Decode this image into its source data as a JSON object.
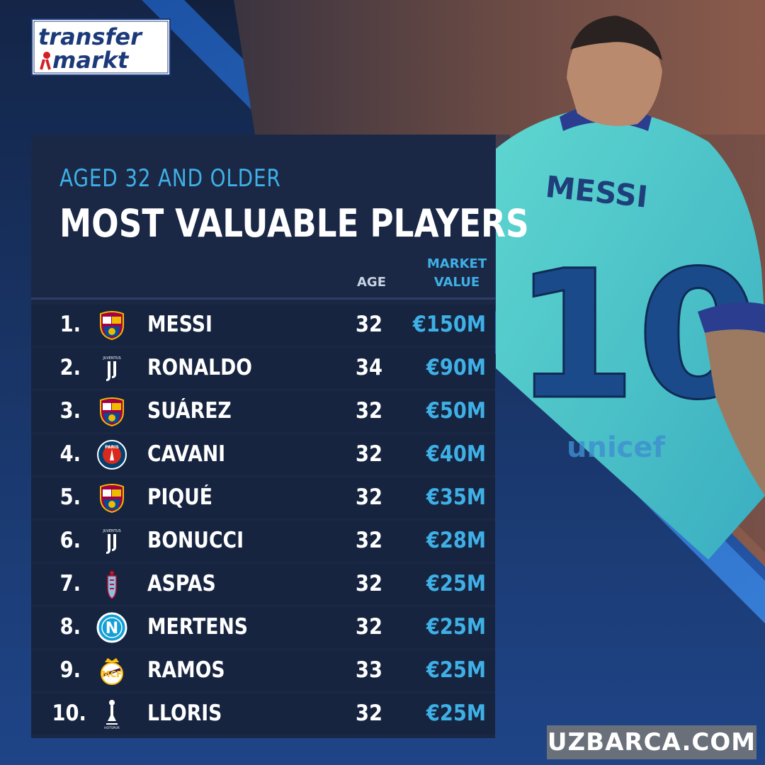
{
  "logo": {
    "line1": "transfer",
    "line2": "markt"
  },
  "header": {
    "subtitle": "AGED 32 AND OLDER",
    "title": "MOST VALUABLE PLAYERS",
    "col_age": "AGE",
    "col_market_line1": "MARKET",
    "col_market_line2": "VALUE"
  },
  "players": [
    {
      "rank": "1.",
      "name": "MESSI",
      "age": "32",
      "value": "€150M",
      "club_icon": "barcelona-crest"
    },
    {
      "rank": "2.",
      "name": "RONALDO",
      "age": "34",
      "value": "€90M",
      "club_icon": "juventus-crest"
    },
    {
      "rank": "3.",
      "name": "SUÁREZ",
      "age": "32",
      "value": "€50M",
      "club_icon": "barcelona-crest"
    },
    {
      "rank": "4.",
      "name": "CAVANI",
      "age": "32",
      "value": "€40M",
      "club_icon": "psg-crest"
    },
    {
      "rank": "5.",
      "name": "PIQUÉ",
      "age": "32",
      "value": "€35M",
      "club_icon": "barcelona-crest"
    },
    {
      "rank": "6.",
      "name": "BONUCCI",
      "age": "32",
      "value": "€28M",
      "club_icon": "juventus-crest"
    },
    {
      "rank": "7.",
      "name": "ASPAS",
      "age": "32",
      "value": "€25M",
      "club_icon": "celta-crest"
    },
    {
      "rank": "8.",
      "name": "MERTENS",
      "age": "32",
      "value": "€25M",
      "club_icon": "napoli-crest"
    },
    {
      "rank": "9.",
      "name": "RAMOS",
      "age": "33",
      "value": "€25M",
      "club_icon": "real-madrid-crest"
    },
    {
      "rank": "10.",
      "name": "LLORIS",
      "age": "32",
      "value": "€25M",
      "club_icon": "tottenham-crest"
    }
  ],
  "photo": {
    "shirt_name": "MESSI",
    "shirt_number": "10",
    "sponsor_text": "unicef"
  },
  "watermark": "UZBARCA.COM",
  "colors": {
    "accent": "#3fb0e6",
    "panel": "#1a2846",
    "row": "#162440",
    "background": "#0f1b33"
  }
}
